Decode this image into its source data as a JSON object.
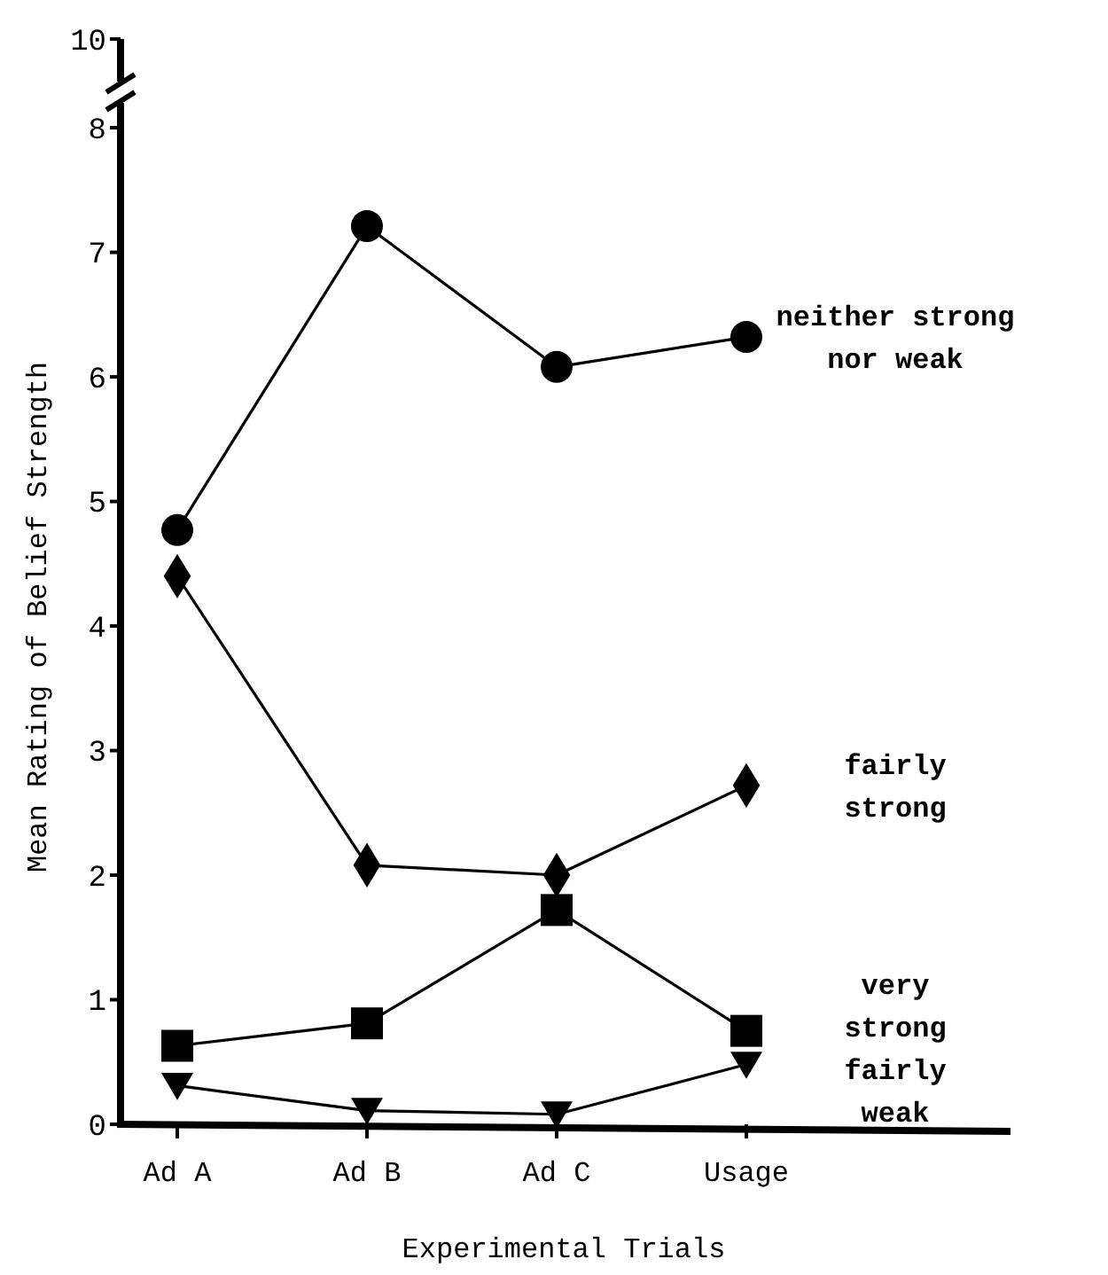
{
  "chart_data": {
    "type": "line",
    "xlabel": "Experimental Trials",
    "ylabel": "Mean Rating of Belief Strength",
    "categories": [
      "Ad A",
      "Ad B",
      "Ad C",
      "Usage"
    ],
    "series": [
      {
        "name": "neither strong nor weak",
        "color": "#000000",
        "marker": "circle",
        "values": [
          4.77,
          7.21,
          6.08,
          6.32
        ]
      },
      {
        "name": "fairly strong",
        "color": "#000000",
        "marker": "diamond",
        "values": [
          4.4,
          2.08,
          2.0,
          2.72
        ]
      },
      {
        "name": "very strong",
        "color": "#000000",
        "marker": "square",
        "values": [
          0.63,
          0.81,
          1.72,
          0.75
        ]
      },
      {
        "name": "fairly weak",
        "color": "#000000",
        "marker": "triangle",
        "values": [
          0.31,
          0.11,
          0.08,
          0.48
        ]
      }
    ],
    "ylim": [
      0,
      8.2
    ],
    "yticks": [
      0,
      1,
      2,
      3,
      4,
      5,
      6,
      7,
      8
    ],
    "annotations": [
      "10"
    ]
  }
}
